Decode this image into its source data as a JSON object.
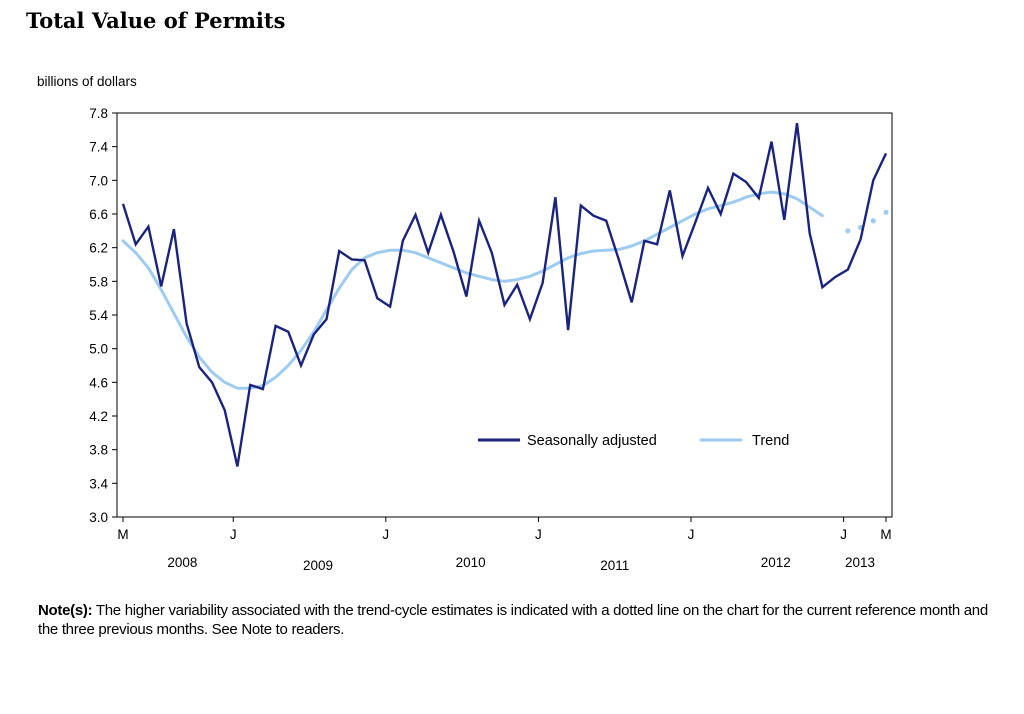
{
  "title": "Total Value of Permits",
  "note": {
    "label": "Note(s):",
    "text": "The higher variability associated with the trend-cycle estimates is indicated with a dotted line on the chart for the current reference month and the three previous months. See Note to readers."
  },
  "colors": {
    "seasonal": "#1a237e",
    "trend": "#9ecbf0"
  },
  "chart_data": {
    "type": "line",
    "title": "Total Value of Permits",
    "ylabel": "billions of dollars",
    "xlabel": "",
    "ylim": [
      3.0,
      7.8
    ],
    "yticks": [
      "3.0",
      "3.4",
      "3.8",
      "4.2",
      "4.6",
      "5.0",
      "5.4",
      "5.8",
      "6.2",
      "6.6",
      "7.0",
      "7.4",
      "7.8"
    ],
    "xlim": [
      0,
      60
    ],
    "xticks": [
      {
        "i": 0,
        "label": "M"
      },
      {
        "i": 13,
        "label": "J"
      },
      {
        "i": 31,
        "label": "J"
      },
      {
        "i": 49,
        "label": "J"
      },
      {
        "i": 67,
        "label": "J"
      },
      {
        "i": 85,
        "label": "J"
      },
      {
        "i": 90,
        "label": "M"
      }
    ],
    "years": [
      {
        "label": "2008",
        "i": 7
      },
      {
        "label": "2009",
        "i": 23
      },
      {
        "label": "2010",
        "i": 41
      },
      {
        "label": "2011",
        "i": 58
      },
      {
        "label": "2012",
        "i": 77
      },
      {
        "label": "2013",
        "i": 88
      }
    ],
    "legend": [
      "Seasonally adjusted",
      "Trend"
    ],
    "legend_position": "lower-right",
    "series": [
      {
        "name": "Seasonally adjusted",
        "values": [
          6.72,
          6.24,
          6.45,
          5.74,
          6.42,
          5.3,
          4.78,
          4.6,
          4.27,
          3.6,
          4.57,
          4.52,
          5.27,
          5.2,
          4.8,
          5.17,
          5.35,
          6.16,
          6.06,
          6.05,
          5.6,
          5.5,
          6.28,
          6.59,
          6.14,
          6.59,
          6.15,
          5.62,
          6.52,
          6.14,
          5.52,
          5.76,
          5.35,
          5.78,
          6.8,
          5.22,
          6.7,
          6.58,
          6.52,
          6.05,
          5.55,
          6.28,
          6.24,
          6.88,
          6.1,
          6.5,
          6.91,
          6.6,
          7.08,
          6.98,
          6.79,
          7.46,
          6.53,
          7.68,
          6.37,
          5.73,
          5.85,
          5.94,
          6.3,
          7.0,
          7.32
        ]
      },
      {
        "name": "Trend",
        "values": [
          6.28,
          6.14,
          5.96,
          5.7,
          5.42,
          5.14,
          4.9,
          4.72,
          4.6,
          4.53,
          4.53,
          4.56,
          4.66,
          4.8,
          4.98,
          5.2,
          5.46,
          5.72,
          5.94,
          6.08,
          6.14,
          6.17,
          6.17,
          6.14,
          6.08,
          6.02,
          5.96,
          5.9,
          5.86,
          5.82,
          5.8,
          5.82,
          5.86,
          5.92,
          6.0,
          6.08,
          6.13,
          6.16,
          6.17,
          6.18,
          6.22,
          6.28,
          6.36,
          6.44,
          6.52,
          6.6,
          6.66,
          6.7,
          6.74,
          6.8,
          6.84,
          6.86,
          6.84,
          6.78,
          6.68,
          6.58,
          6.48,
          6.4,
          6.44,
          6.52,
          6.62
        ],
        "dotted_from_index": 56
      }
    ]
  }
}
